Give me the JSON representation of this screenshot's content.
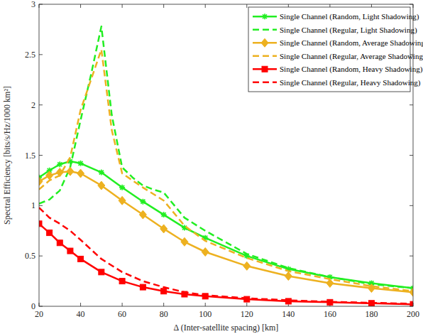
{
  "chart_data": {
    "type": "line",
    "x_label": "Δ (Inter-satellite spacing) [km]",
    "y_label": "Spectral Efficiency [bits/s/Hz/1000 km²]",
    "xlim": [
      20,
      200
    ],
    "xticks": [
      20,
      40,
      60,
      80,
      100,
      120,
      140,
      160,
      180,
      200
    ],
    "ylim": [
      0,
      3
    ],
    "yticks": [
      0,
      0.5,
      1,
      1.5,
      2,
      2.5,
      3
    ],
    "grid": false,
    "legend": "top-right",
    "series": [
      {
        "name": "Single Channel (Random, Light Shadowing)",
        "color": "#22ee22",
        "marker": "star",
        "line_style": "solid",
        "x": [
          20,
          25,
          30,
          35,
          40,
          50,
          60,
          70,
          80,
          90,
          100,
          120,
          140,
          160,
          180,
          200
        ],
        "values": [
          1.28,
          1.35,
          1.41,
          1.44,
          1.42,
          1.33,
          1.18,
          1.04,
          0.91,
          0.78,
          0.68,
          0.5,
          0.37,
          0.29,
          0.23,
          0.18
        ]
      },
      {
        "name": "Single Channel (Regular, Light Shadowing)",
        "color": "#22ee22",
        "marker": "none",
        "line_style": "dashed",
        "x": [
          20,
          25,
          30,
          35,
          40,
          45,
          50,
          55,
          60,
          65,
          70,
          75,
          80,
          90,
          100,
          120,
          140,
          160,
          180,
          200
        ],
        "values": [
          1.02,
          1.06,
          1.15,
          1.38,
          1.85,
          2.3,
          2.78,
          1.9,
          1.38,
          1.28,
          1.2,
          1.16,
          1.13,
          0.88,
          0.75,
          0.52,
          0.38,
          0.29,
          0.22,
          0.18
        ]
      },
      {
        "name": "Single Channel (Random, Average Shadowing)",
        "color": "#edb120",
        "marker": "diamond",
        "line_style": "solid",
        "x": [
          20,
          25,
          30,
          35,
          40,
          50,
          60,
          70,
          80,
          90,
          100,
          120,
          140,
          160,
          180,
          200
        ],
        "values": [
          1.24,
          1.3,
          1.33,
          1.34,
          1.32,
          1.2,
          1.05,
          0.91,
          0.77,
          0.64,
          0.54,
          0.4,
          0.3,
          0.23,
          0.18,
          0.14
        ]
      },
      {
        "name": "Single Channel (Regular, Average Shadowing)",
        "color": "#edb120",
        "marker": "none",
        "line_style": "dashed",
        "x": [
          20,
          25,
          30,
          35,
          40,
          45,
          50,
          55,
          60,
          70,
          80,
          90,
          100,
          120,
          140,
          160,
          180,
          200
        ],
        "values": [
          1.16,
          1.25,
          1.3,
          1.48,
          1.95,
          2.25,
          2.55,
          1.75,
          1.32,
          1.18,
          1.05,
          0.8,
          0.65,
          0.48,
          0.35,
          0.27,
          0.2,
          0.15
        ]
      },
      {
        "name": "Single Channel (Random, Heavy Shadowing)",
        "color": "#ff0000",
        "marker": "square",
        "line_style": "solid",
        "x": [
          20,
          25,
          30,
          35,
          40,
          50,
          60,
          70,
          80,
          90,
          100,
          120,
          140,
          160,
          180,
          200
        ],
        "values": [
          0.82,
          0.73,
          0.63,
          0.55,
          0.47,
          0.34,
          0.25,
          0.19,
          0.15,
          0.12,
          0.1,
          0.07,
          0.05,
          0.04,
          0.03,
          0.02
        ]
      },
      {
        "name": "Single Channel (Regular, Heavy Shadowing)",
        "color": "#ff0000",
        "marker": "none",
        "line_style": "dashed",
        "x": [
          20,
          25,
          30,
          35,
          40,
          50,
          60,
          70,
          80,
          90,
          100,
          120,
          140,
          160,
          180,
          200
        ],
        "values": [
          0.98,
          0.88,
          0.82,
          0.75,
          0.66,
          0.47,
          0.34,
          0.25,
          0.19,
          0.14,
          0.11,
          0.08,
          0.06,
          0.045,
          0.035,
          0.025
        ]
      }
    ]
  }
}
